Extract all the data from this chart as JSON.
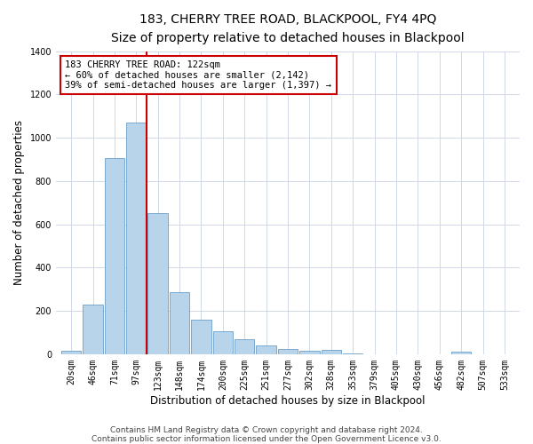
{
  "title": "183, CHERRY TREE ROAD, BLACKPOOL, FY4 4PQ",
  "subtitle": "Size of property relative to detached houses in Blackpool",
  "xlabel": "Distribution of detached houses by size in Blackpool",
  "ylabel": "Number of detached properties",
  "bar_labels": [
    "20sqm",
    "46sqm",
    "71sqm",
    "97sqm",
    "123sqm",
    "148sqm",
    "174sqm",
    "200sqm",
    "225sqm",
    "251sqm",
    "277sqm",
    "302sqm",
    "328sqm",
    "353sqm",
    "379sqm",
    "405sqm",
    "430sqm",
    "456sqm",
    "482sqm",
    "507sqm",
    "533sqm"
  ],
  "bar_values": [
    15,
    228,
    905,
    1070,
    653,
    285,
    158,
    108,
    68,
    40,
    25,
    15,
    20,
    5,
    0,
    0,
    0,
    0,
    12,
    0,
    0
  ],
  "bar_color": "#b8d4ea",
  "bar_edge_color": "#6a9fc8",
  "marker_bin_index": 4,
  "marker_color": "#cc0000",
  "annotation_title": "183 CHERRY TREE ROAD: 122sqm",
  "annotation_line1": "← 60% of detached houses are smaller (2,142)",
  "annotation_line2": "39% of semi-detached houses are larger (1,397) →",
  "annotation_box_color": "#ffffff",
  "annotation_box_edge_color": "#cc0000",
  "ylim": [
    0,
    1400
  ],
  "yticks": [
    0,
    200,
    400,
    600,
    800,
    1000,
    1200,
    1400
  ],
  "footnote1": "Contains HM Land Registry data © Crown copyright and database right 2024.",
  "footnote2": "Contains public sector information licensed under the Open Government Licence v3.0.",
  "bg_color": "#ffffff",
  "grid_color": "#d0d8e8",
  "title_fontsize": 10,
  "subtitle_fontsize": 9,
  "axis_label_fontsize": 8.5,
  "tick_fontsize": 7,
  "annotation_fontsize": 7.5,
  "footnote_fontsize": 6.5
}
